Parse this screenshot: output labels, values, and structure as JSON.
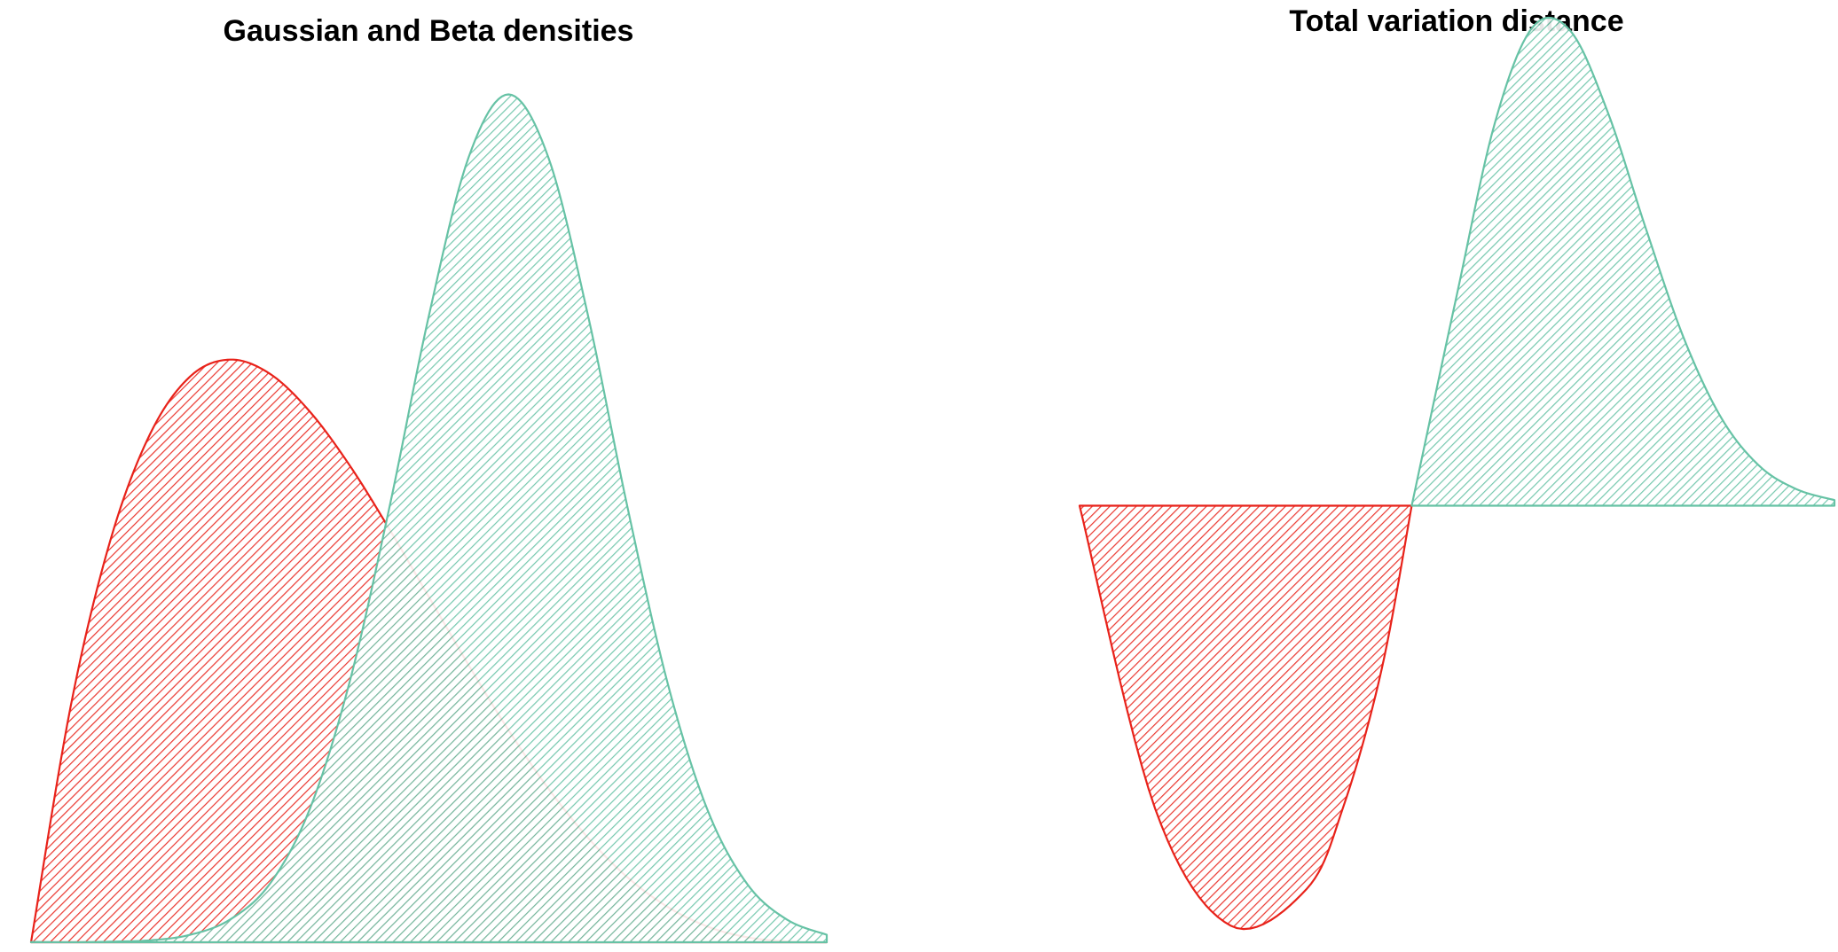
{
  "colors": {
    "red": "#E8221A",
    "green": "#66C2A5",
    "background": "#FFFFFF"
  },
  "chart_data": [
    {
      "type": "area",
      "title": "Gaussian and Beta densities",
      "fill_pattern": "diagonal-hatch",
      "axes_visible": false,
      "grid": false,
      "legend": "none",
      "xlim": [
        0,
        1
      ],
      "ylim": [
        0,
        3
      ],
      "series": [
        {
          "color": "#E8221A",
          "distribution": "Beta(2, 4)",
          "x": [
            0,
            0.05,
            0.1,
            0.15,
            0.2,
            0.25,
            0.3,
            0.35,
            0.4,
            0.45,
            0.5,
            0.55,
            0.6,
            0.65,
            0.7,
            0.75,
            0.8,
            0.85,
            0.9,
            0.95,
            1.0
          ],
          "values": [
            0,
            0.857,
            1.458,
            1.842,
            2.048,
            2.109,
            2.058,
            1.922,
            1.728,
            1.497,
            1.25,
            1.003,
            0.768,
            0.557,
            0.378,
            0.234,
            0.128,
            0.057,
            0.018,
            0.003,
            0
          ]
        },
        {
          "color": "#66C2A5",
          "distribution": "Normal(mean 0.6, sd 0.13)",
          "x": [
            0,
            0.05,
            0.1,
            0.15,
            0.2,
            0.25,
            0.3,
            0.35,
            0.4,
            0.45,
            0.5,
            0.55,
            0.6,
            0.65,
            0.7,
            0.75,
            0.8,
            0.85,
            0.9,
            0.95,
            1.0
          ],
          "values": [
            0.001,
            0.0,
            0.002,
            0.007,
            0.027,
            0.082,
            0.211,
            0.48,
            0.938,
            1.569,
            2.268,
            2.842,
            3.069,
            2.842,
            2.268,
            1.569,
            0.938,
            0.48,
            0.211,
            0.082,
            0.027
          ]
        }
      ]
    },
    {
      "type": "area",
      "title": "Total variation distance",
      "fill_pattern": "diagonal-hatch",
      "axes_visible": false,
      "grid": false,
      "legend": "none",
      "description_of_values": "difference of the two densities",
      "xlim": [
        0,
        1
      ],
      "ylim": [
        -2.1,
        2.1
      ],
      "series": [
        {
          "color": "#E8221A",
          "region": "negative difference",
          "x": [
            0,
            0.1,
            0.2,
            0.3,
            0.35,
            0.4,
            0.44
          ],
          "values": [
            0,
            -1.456,
            -2.02,
            -1.847,
            -1.442,
            -0.79,
            0
          ]
        },
        {
          "color": "#66C2A5",
          "region": "positive difference",
          "x": [
            0.44,
            0.5,
            0.55,
            0.6,
            0.65,
            0.7,
            0.75,
            0.8,
            0.85,
            0.9,
            0.95,
            1.0
          ],
          "values": [
            0,
            1.018,
            1.839,
            2.301,
            2.285,
            1.89,
            1.335,
            0.81,
            0.423,
            0.193,
            0.079,
            0.027
          ]
        }
      ]
    }
  ]
}
